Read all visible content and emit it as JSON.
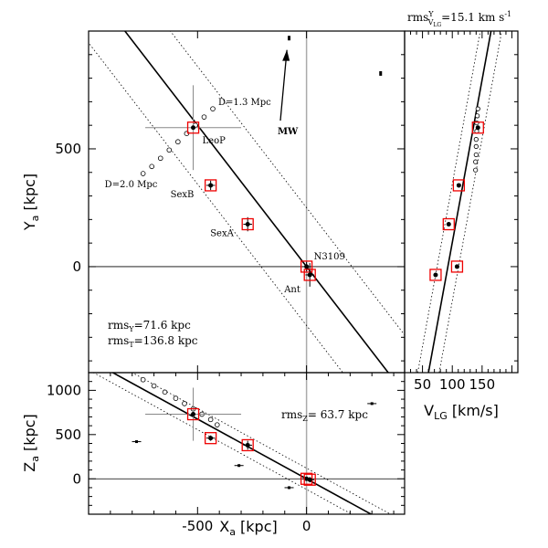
{
  "chart_data": [
    {
      "type": "scatter",
      "id": "main",
      "xlabel": "X_a [kpc]",
      "ylabel": "Y_a [kpc]",
      "xlim": [
        -1000,
        450
      ],
      "ylim": [
        -450,
        1000
      ],
      "yticks": [
        0,
        500
      ],
      "ylabel_text": "Y",
      "ylabel_sub": "a",
      "ylabel_unit": "[kpc]",
      "fit": {
        "slope": -1.2,
        "intercept": 0,
        "band": 250
      },
      "ref_line_y": 0,
      "ref_line_x": 0,
      "galaxies": [
        {
          "name": "LeoP",
          "x": -520,
          "y": 590,
          "xerr": 220,
          "yerr": 180
        },
        {
          "name": "SexB",
          "x": -440,
          "y": 345,
          "xerr": 20,
          "yerr": 20
        },
        {
          "name": "SexA",
          "x": -270,
          "y": 180,
          "xerr": 20,
          "yerr": 30
        },
        {
          "name": "N3109",
          "x": 0,
          "y": 0,
          "xerr": 20,
          "yerr": 20
        },
        {
          "name": "Ant",
          "x": 15,
          "y": -35,
          "xerr": 20,
          "yerr": 50
        }
      ],
      "distance_track": [
        {
          "x": -430,
          "y": 670,
          "label": "D=1.3 Mpc"
        },
        {
          "x": -470,
          "y": 635
        },
        {
          "x": -510,
          "y": 600
        },
        {
          "x": -550,
          "y": 565
        },
        {
          "x": -590,
          "y": 530
        },
        {
          "x": -630,
          "y": 495
        },
        {
          "x": -670,
          "y": 460
        },
        {
          "x": -710,
          "y": 425
        },
        {
          "x": -750,
          "y": 395,
          "label": "D=2.0 Mpc"
        }
      ],
      "mw_arrow": {
        "x0": -120,
        "y0": 620,
        "x1": -90,
        "y1": 920,
        "label": "MW"
      },
      "small_errorbars": [
        {
          "x": -80,
          "y": 970
        },
        {
          "x": 340,
          "y": 820
        }
      ],
      "annotations": [
        "rms_Y=71.6 kpc",
        "rms_T=136.8 kpc"
      ],
      "rms_y_label": "rms",
      "rms_y_sub": "Y",
      "rms_y_value": "=71.6 kpc",
      "rms_t_label": "rms",
      "rms_t_sub": "T",
      "rms_t_value": "=136.8 kpc"
    },
    {
      "type": "scatter",
      "id": "bottom",
      "xlabel": "X_a [kpc]",
      "ylabel": "Z_a [kpc]",
      "xlim": [
        -1000,
        450
      ],
      "ylim": [
        -400,
        1200
      ],
      "xticks": [
        -500,
        0
      ],
      "yticks": [
        0,
        500,
        1000
      ],
      "xlabel_text": "X",
      "xlabel_sub": "a",
      "xlabel_unit": "[kpc]",
      "ylabel_text": "Z",
      "ylabel_sub": "a",
      "ylabel_unit": "[kpc]",
      "fit": {
        "slope": -1.35,
        "intercept": 0,
        "band": 120
      },
      "ref_line_y": 0,
      "ref_line_x": 0,
      "galaxies": [
        {
          "name": "LeoP",
          "x": -520,
          "y": 730,
          "xerr": 220,
          "yerr": 300
        },
        {
          "name": "SexB",
          "x": -440,
          "y": 460,
          "xerr": 20,
          "yerr": 30
        },
        {
          "name": "SexA",
          "x": -270,
          "y": 380,
          "xerr": 20,
          "yerr": 50
        },
        {
          "name": "N3109",
          "x": 0,
          "y": 0,
          "xerr": 20,
          "yerr": 20
        },
        {
          "name": "Ant",
          "x": 15,
          "y": -10,
          "xerr": 20,
          "yerr": 30
        }
      ],
      "distance_track": [
        {
          "x": -750,
          "y": 1120
        },
        {
          "x": -700,
          "y": 1050
        },
        {
          "x": -650,
          "y": 980
        },
        {
          "x": -600,
          "y": 910
        },
        {
          "x": -560,
          "y": 850
        },
        {
          "x": -520,
          "y": 790
        },
        {
          "x": -480,
          "y": 730
        },
        {
          "x": -440,
          "y": 670
        },
        {
          "x": -410,
          "y": 610
        }
      ],
      "small_errorbars": [
        {
          "x": -780,
          "y": 420
        },
        {
          "x": -310,
          "y": 150
        },
        {
          "x": -80,
          "y": -100
        },
        {
          "x": 300,
          "y": 850
        }
      ],
      "annotations": [
        "rms_Z= 63.7 kpc"
      ],
      "rms_label": "rms",
      "rms_sub": "Z",
      "rms_value": "= 63.7 kpc"
    },
    {
      "type": "scatter",
      "id": "right",
      "xlabel": "V_LG [km/s]",
      "ylabel": "",
      "xlim": [
        20,
        210
      ],
      "ylim": [
        -450,
        1000
      ],
      "xticks": [
        50,
        100,
        150
      ],
      "xlabel_text": "V",
      "xlabel_sub": "LG",
      "xlabel_unit": "[km/s]",
      "fit": {
        "v0": 60,
        "y0": -450,
        "v1": 165,
        "y1": 1000,
        "band": 18
      },
      "galaxies": [
        {
          "name": "LeoP",
          "v": 143,
          "y": 590
        },
        {
          "name": "SexB",
          "v": 111,
          "y": 345
        },
        {
          "name": "SexA",
          "v": 94,
          "y": 180
        },
        {
          "name": "N3109",
          "v": 108,
          "y": 0
        },
        {
          "name": "Ant",
          "v": 72,
          "y": -35
        }
      ],
      "distance_track_v": [
        143,
        142,
        141,
        141,
        140,
        140,
        140,
        139,
        139
      ],
      "distance_track_y": [
        670,
        640,
        610,
        575,
        540,
        510,
        475,
        445,
        410
      ],
      "title": "rms^Y_VLG=15.1 km s^-1",
      "title_main": "rms",
      "title_sup": "Y",
      "title_sub": "V",
      "title_subsub": "LG",
      "title_value": "=15.1 km s",
      "title_exp": "-1"
    }
  ]
}
